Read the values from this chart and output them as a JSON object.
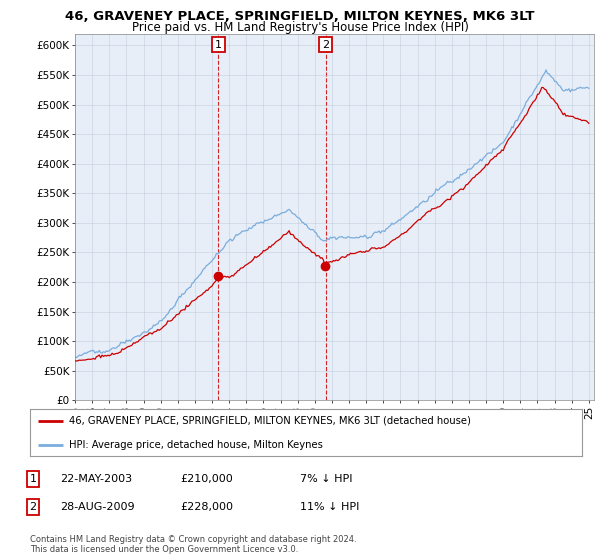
{
  "title_line1": "46, GRAVENEY PLACE, SPRINGFIELD, MILTON KEYNES, MK6 3LT",
  "title_line2": "Price paid vs. HM Land Registry's House Price Index (HPI)",
  "ylim": [
    0,
    620000
  ],
  "yticks": [
    0,
    50000,
    100000,
    150000,
    200000,
    250000,
    300000,
    350000,
    400000,
    450000,
    500000,
    550000,
    600000
  ],
  "ytick_labels": [
    "£0",
    "£50K",
    "£100K",
    "£150K",
    "£200K",
    "£250K",
    "£300K",
    "£350K",
    "£400K",
    "£450K",
    "£500K",
    "£550K",
    "£600K"
  ],
  "hpi_color": "#7aaddc",
  "price_color": "#cc0000",
  "legend_line1": "46, GRAVENEY PLACE, SPRINGFIELD, MILTON KEYNES, MK6 3LT (detached house)",
  "legend_line2": "HPI: Average price, detached house, Milton Keynes",
  "note1_date": "22-MAY-2003",
  "note1_price": "£210,000",
  "note1_hpi": "7% ↓ HPI",
  "note2_date": "28-AUG-2009",
  "note2_price": "£228,000",
  "note2_hpi": "11% ↓ HPI",
  "footer": "Contains HM Land Registry data © Crown copyright and database right 2024.\nThis data is licensed under the Open Government Licence v3.0.",
  "background_color": "#ffffff",
  "plot_bg_color": "#e8eef8"
}
